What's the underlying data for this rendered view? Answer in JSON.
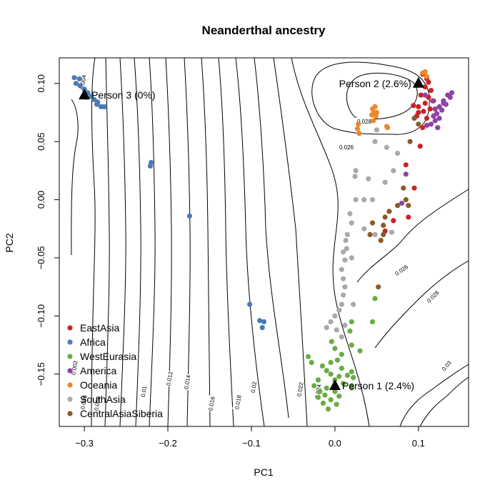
{
  "chart_data": {
    "type": "scatter",
    "title": "Neanderthal ancestry",
    "xlabel": "PC1",
    "ylabel": "PC2",
    "xlim": [
      -0.33,
      0.16
    ],
    "ylim": [
      -0.195,
      0.122
    ],
    "x_ticks": [
      -0.3,
      -0.2,
      -0.1,
      0.0,
      0.1
    ],
    "x_tick_labels": [
      "−0.3",
      "−0.2",
      "−0.1",
      "0.0",
      "0.1"
    ],
    "y_ticks": [
      -0.15,
      -0.1,
      -0.05,
      0.0,
      0.05,
      0.1
    ],
    "y_tick_labels": [
      "−0.15",
      "−0.10",
      "−0.05",
      "0.00",
      "0.05",
      "0.10"
    ],
    "legend_position": "bottom-left",
    "series": [
      {
        "name": "EastAsia",
        "color": "#c8232a",
        "points": [
          [
            0.105,
            0.108
          ],
          [
            0.11,
            0.104
          ],
          [
            0.112,
            0.101
          ],
          [
            0.108,
            0.097
          ],
          [
            0.115,
            0.094
          ],
          [
            0.103,
            0.09
          ],
          [
            0.112,
            0.088
          ],
          [
            0.118,
            0.085
          ],
          [
            0.108,
            0.083
          ],
          [
            0.1,
            0.08
          ],
          [
            0.114,
            0.078
          ],
          [
            0.106,
            0.076
          ],
          [
            0.094,
            0.081
          ],
          [
            0.098,
            0.072
          ],
          [
            0.11,
            0.07
          ],
          [
            0.105,
            0.062
          ],
          [
            0.1,
            0.075
          ],
          [
            0.102,
            0.046
          ],
          [
            0.085,
            0.03
          ],
          [
            0.07,
            -0.018
          ],
          [
            0.06,
            -0.027
          ],
          [
            0.088,
            -0.015
          ],
          [
            0.095,
            0.01
          ]
        ]
      },
      {
        "name": "Africa",
        "color": "#4a7bb7",
        "points": [
          [
            -0.312,
            0.105
          ],
          [
            -0.31,
            0.1
          ],
          [
            -0.305,
            0.098
          ],
          [
            -0.3,
            0.095
          ],
          [
            -0.296,
            0.092
          ],
          [
            -0.292,
            0.089
          ],
          [
            -0.288,
            0.086
          ],
          [
            -0.284,
            0.084
          ],
          [
            -0.285,
            0.082
          ],
          [
            -0.28,
            0.08
          ],
          [
            -0.276,
            0.08
          ],
          [
            -0.306,
            0.104
          ],
          [
            -0.298,
            0.088
          ],
          [
            -0.22,
            0.032
          ],
          [
            -0.221,
            0.029
          ],
          [
            -0.174,
            -0.014
          ],
          [
            -0.102,
            -0.09
          ],
          [
            -0.09,
            -0.104
          ],
          [
            -0.087,
            -0.11
          ],
          [
            -0.085,
            -0.105
          ]
        ]
      },
      {
        "name": "WestEurasia",
        "color": "#6aaa47",
        "points": [
          [
            -0.032,
            -0.135
          ],
          [
            -0.028,
            -0.14
          ],
          [
            -0.015,
            -0.143
          ],
          [
            -0.01,
            -0.147
          ],
          [
            -0.005,
            -0.15
          ],
          [
            0.0,
            -0.155
          ],
          [
            0.005,
            -0.152
          ],
          [
            0.01,
            -0.158
          ],
          [
            0.015,
            -0.151
          ],
          [
            0.008,
            -0.145
          ],
          [
            -0.02,
            -0.155
          ],
          [
            -0.025,
            -0.16
          ],
          [
            -0.018,
            -0.165
          ],
          [
            -0.012,
            -0.168
          ],
          [
            -0.005,
            -0.172
          ],
          [
            0.002,
            -0.176
          ],
          [
            -0.008,
            -0.18
          ],
          [
            -0.014,
            -0.175
          ],
          [
            0.0,
            -0.165
          ],
          [
            0.005,
            -0.169
          ],
          [
            -0.02,
            -0.17
          ],
          [
            -0.01,
            -0.162
          ],
          [
            -0.005,
            -0.14
          ],
          [
            0.003,
            -0.138
          ],
          [
            0.008,
            -0.133
          ],
          [
            0.0,
            -0.128
          ],
          [
            -0.004,
            -0.122
          ],
          [
            0.02,
            -0.125
          ],
          [
            0.018,
            -0.113
          ],
          [
            0.02,
            -0.105
          ],
          [
            0.02,
            -0.148
          ],
          [
            0.02,
            -0.162
          ],
          [
            0.022,
            -0.153
          ],
          [
            0.02,
            -0.16
          ],
          [
            0.045,
            -0.105
          ],
          [
            0.048,
            -0.085
          ],
          [
            0.03,
            -0.13
          ]
        ]
      },
      {
        "name": "America",
        "color": "#8e44a4",
        "points": [
          [
            0.13,
            0.085
          ],
          [
            0.125,
            0.08
          ],
          [
            0.12,
            0.078
          ],
          [
            0.122,
            0.074
          ],
          [
            0.125,
            0.07
          ],
          [
            0.128,
            0.077
          ],
          [
            0.133,
            0.082
          ],
          [
            0.138,
            0.088
          ],
          [
            0.14,
            0.092
          ],
          [
            0.135,
            0.09
          ],
          [
            0.13,
            0.083
          ],
          [
            0.12,
            0.068
          ],
          [
            0.115,
            0.065
          ],
          [
            0.123,
            0.062
          ],
          [
            0.118,
            0.072
          ],
          [
            0.11,
            0.064
          ],
          [
            0.117,
            0.085
          ],
          [
            0.108,
            0.09
          ],
          [
            0.085,
            0.022
          ],
          [
            0.08,
            -0.003
          ]
        ]
      },
      {
        "name": "Oceania",
        "color": "#e8892e",
        "points": [
          [
            0.045,
            0.078
          ],
          [
            0.047,
            0.075
          ],
          [
            0.049,
            0.072
          ],
          [
            0.046,
            0.068
          ],
          [
            0.05,
            0.075
          ],
          [
            0.048,
            0.08
          ],
          [
            0.044,
            0.073
          ],
          [
            0.028,
            0.065
          ],
          [
            0.027,
            0.061
          ],
          [
            0.029,
            0.057
          ],
          [
            0.063,
            0.062
          ],
          [
            0.062,
            0.063
          ],
          [
            0.105,
            0.109
          ],
          [
            0.108,
            0.11
          ],
          [
            0.11,
            0.106
          ]
        ]
      },
      {
        "name": "SouthAsia",
        "color": "#a9a9a9",
        "points": [
          [
            0.025,
            0.025
          ],
          [
            0.024,
            0.02
          ],
          [
            0.025,
            0.0
          ],
          [
            0.018,
            -0.012
          ],
          [
            0.02,
            -0.02
          ],
          [
            0.015,
            -0.03
          ],
          [
            0.013,
            -0.035
          ],
          [
            0.014,
            -0.042
          ],
          [
            0.01,
            -0.045
          ],
          [
            0.012,
            -0.052
          ],
          [
            0.008,
            -0.06
          ],
          [
            0.01,
            -0.068
          ],
          [
            0.012,
            -0.075
          ],
          [
            0.01,
            -0.082
          ],
          [
            0.008,
            -0.09
          ],
          [
            0.005,
            -0.095
          ],
          [
            0.0,
            -0.1
          ],
          [
            -0.005,
            -0.105
          ],
          [
            -0.01,
            -0.11
          ],
          [
            0.002,
            -0.112
          ],
          [
            0.008,
            -0.118
          ],
          [
            0.012,
            -0.108
          ],
          [
            0.02,
            -0.05
          ],
          [
            0.022,
            -0.09
          ],
          [
            0.035,
            -0.025
          ],
          [
            0.04,
            0.018
          ],
          [
            0.048,
            0.05
          ],
          [
            0.05,
            0.06
          ],
          [
            0.062,
            0.045
          ],
          [
            0.07,
            0.025
          ],
          [
            0.035,
            0.0
          ],
          [
            0.048,
            -0.03
          ],
          [
            0.06,
            0.015
          ],
          [
            0.075,
            0.04
          ],
          [
            0.068,
            -0.028
          ],
          [
            0.045,
            0.0
          ]
        ]
      },
      {
        "name": "CentralAsiaSiberia",
        "color": "#8b5a2b",
        "points": [
          [
            0.095,
            0.07
          ],
          [
            0.1,
            0.065
          ],
          [
            0.09,
            0.05
          ],
          [
            0.082,
            0.01
          ],
          [
            0.075,
            -0.005
          ],
          [
            0.065,
            -0.01
          ],
          [
            0.06,
            -0.015
          ],
          [
            0.058,
            -0.022
          ],
          [
            0.058,
            -0.03
          ],
          [
            0.055,
            -0.035
          ],
          [
            0.045,
            -0.02
          ],
          [
            0.042,
            -0.03
          ],
          [
            0.052,
            -0.075
          ],
          [
            0.085,
            -0.0
          ],
          [
            0.088,
            -0.005
          ]
        ]
      }
    ],
    "annotations": [
      {
        "label": "Person 1 (2.4%)",
        "x": 0.0,
        "y": -0.16
      },
      {
        "label": "Person 2 (2.6%)",
        "x": 0.1,
        "y": 0.1
      },
      {
        "label": "Person 3 (0%)",
        "x": -0.3,
        "y": 0.09
      }
    ],
    "contour_labels": [
      "0.002",
      "0.004",
      "0.006",
      "0.008",
      "0.01",
      "0.012",
      "0.014",
      "0.016",
      "0.018",
      "0.02",
      "0.022",
      "0.024",
      "0.026",
      "0.026",
      "0.028",
      "0.028",
      "0.03"
    ]
  }
}
